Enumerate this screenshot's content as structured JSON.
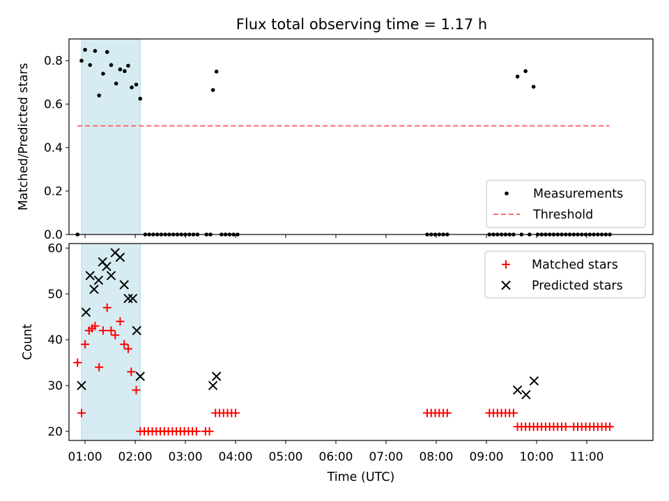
{
  "title": "Flux total observing time = 1.17 h",
  "chart_data": [
    {
      "type": "scatter",
      "ylabel": "Matched/Predicted stars",
      "xlim": [
        0.68,
        12.32
      ],
      "ylim": [
        0,
        0.9
      ],
      "yticks": [
        "0.0",
        "0.2",
        "0.4",
        "0.6",
        "0.8"
      ],
      "yticks_values": [
        0,
        0.2,
        0.4,
        0.6,
        0.8
      ],
      "shaded_interval": {
        "x0": 0.93,
        "x1": 2.1,
        "color": "#add8e6"
      },
      "threshold": {
        "value": 0.5,
        "x0": 0.85,
        "x1": 11.45,
        "color": "#ff6b6b"
      },
      "series": [
        {
          "name": "Measurements",
          "color": "#000000",
          "x": [
            0.85,
            0.93,
            1.0,
            1.1,
            1.2,
            1.28,
            1.36,
            1.44,
            1.52,
            1.62,
            1.7,
            1.79,
            1.86,
            1.93,
            2.02,
            2.1,
            2.2,
            2.28,
            2.36,
            2.44,
            2.52,
            2.6,
            2.68,
            2.76,
            2.84,
            2.92,
            3.0,
            3.08,
            3.16,
            3.24,
            3.42,
            3.5,
            3.55,
            3.62,
            3.72,
            3.8,
            3.88,
            3.96,
            4.04,
            7.82,
            7.9,
            7.98,
            8.06,
            8.14,
            8.22,
            9.06,
            9.14,
            9.22,
            9.3,
            9.38,
            9.46,
            9.54,
            9.62,
            9.7,
            9.78,
            9.86,
            9.94,
            10.02,
            10.1,
            10.18,
            10.26,
            10.34,
            10.42,
            10.5,
            10.58,
            10.66,
            10.74,
            10.82,
            10.9,
            10.98,
            11.06,
            11.14,
            11.22,
            11.3,
            11.38,
            11.46
          ],
          "y": [
            0,
            0.8,
            0.85,
            0.78,
            0.845,
            0.64,
            0.74,
            0.84,
            0.78,
            0.695,
            0.76,
            0.752,
            0.777,
            0.677,
            0.69,
            0.625,
            0,
            0,
            0,
            0,
            0,
            0,
            0,
            0,
            0,
            0,
            0,
            0,
            0,
            0,
            0,
            0,
            0.665,
            0.75,
            0,
            0,
            0,
            0,
            0,
            0,
            0,
            0,
            0,
            0,
            0,
            0,
            0,
            0,
            0,
            0,
            0,
            0,
            0.727,
            0,
            0.752,
            0,
            0.68,
            0,
            0,
            0,
            0,
            0,
            0,
            0,
            0,
            0,
            0,
            0,
            0,
            0,
            0,
            0,
            0,
            0,
            0,
            0
          ]
        }
      ],
      "legend": {
        "location": "lower right",
        "entries": [
          "Measurements",
          "Threshold"
        ]
      }
    },
    {
      "type": "scatter",
      "xlabel": "Time (UTC)",
      "ylabel": "Count",
      "xlim": [
        0.68,
        12.32
      ],
      "ylim": [
        18,
        61
      ],
      "yticks": [
        "20",
        "30",
        "40",
        "50",
        "60"
      ],
      "yticks_values": [
        20,
        30,
        40,
        50,
        60
      ],
      "xticks": [
        "01:00",
        "02:00",
        "03:00",
        "04:00",
        "05:00",
        "06:00",
        "07:00",
        "08:00",
        "09:00",
        "10:00",
        "11:00"
      ],
      "xticks_values": [
        1,
        2,
        3,
        4,
        5,
        6,
        7,
        8,
        9,
        10,
        11
      ],
      "shaded_interval": {
        "x0": 0.93,
        "x1": 2.1,
        "color": "#add8e6"
      },
      "series": [
        {
          "name": "Matched stars",
          "color": "#ff0000",
          "marker": "+",
          "x": [
            0.85,
            0.93,
            1.0,
            1.08,
            1.14,
            1.2,
            1.28,
            1.36,
            1.44,
            1.52,
            1.6,
            1.7,
            1.78,
            1.86,
            1.92,
            2.02,
            2.1,
            2.18,
            2.26,
            2.34,
            2.42,
            2.5,
            2.58,
            2.66,
            2.74,
            2.82,
            2.9,
            2.98,
            3.06,
            3.14,
            3.22,
            3.4,
            3.48,
            3.6,
            3.68,
            3.76,
            3.84,
            3.92,
            4.0,
            7.82,
            7.9,
            7.98,
            8.06,
            8.14,
            8.22,
            9.06,
            9.14,
            9.22,
            9.3,
            9.38,
            9.46,
            9.54,
            9.62,
            9.7,
            9.78,
            9.86,
            9.94,
            10.02,
            10.1,
            10.18,
            10.26,
            10.34,
            10.42,
            10.5,
            10.58,
            10.74,
            10.82,
            10.9,
            10.98,
            11.06,
            11.14,
            11.22,
            11.3,
            11.38,
            11.46
          ],
          "y": [
            35,
            24,
            39,
            42,
            42.5,
            43,
            34,
            42,
            47,
            42,
            41,
            44,
            39,
            38,
            33,
            29,
            20,
            20,
            20,
            20,
            20,
            20,
            20,
            20,
            20,
            20,
            20,
            20,
            20,
            20,
            20,
            20,
            20,
            24,
            24,
            24,
            24,
            24,
            24,
            24,
            24,
            24,
            24,
            24,
            24,
            24,
            24,
            24,
            24,
            24,
            24,
            24,
            21,
            21,
            21,
            21,
            21,
            21,
            21,
            21,
            21,
            21,
            21,
            21,
            21,
            21,
            21,
            21,
            21,
            21,
            21,
            21,
            21,
            21,
            21
          ]
        },
        {
          "name": "Predicted stars",
          "color": "#000000",
          "marker": "x",
          "x": [
            0.93,
            1.02,
            1.1,
            1.18,
            1.27,
            1.35,
            1.43,
            1.52,
            1.6,
            1.7,
            1.78,
            1.86,
            1.95,
            2.03,
            2.1,
            3.55,
            3.62,
            9.62,
            9.79,
            9.95
          ],
          "y": [
            30,
            46,
            54,
            51,
            53,
            57,
            56,
            54,
            59,
            58,
            52,
            49,
            49,
            42,
            32,
            30,
            32,
            29,
            28,
            31
          ]
        }
      ],
      "legend": {
        "location": "upper right",
        "entries": [
          "Matched stars",
          "Predicted stars"
        ]
      }
    }
  ]
}
